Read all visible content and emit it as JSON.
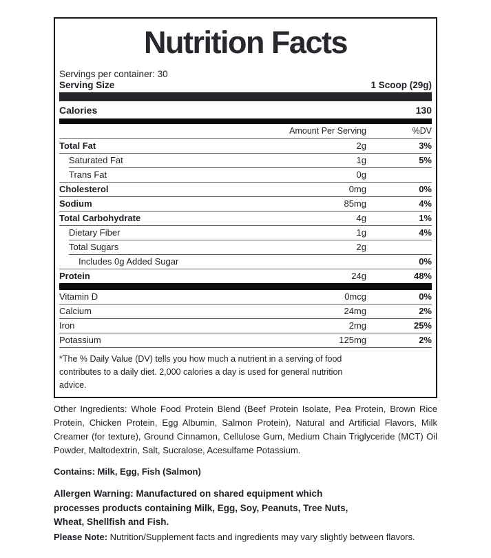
{
  "colors": {
    "text": "#1d1f24",
    "bar-dark": "#0c0c0d",
    "bar-charcoal": "#24262c",
    "hairline": "#595b60",
    "border": "#17181c",
    "bg": "#ffffff"
  },
  "label": {
    "title": "Nutrition Facts",
    "servings_per_container": "Servings per container: 30",
    "serving_size_label": "Serving Size",
    "serving_size_value": "1 Scoop (29g)",
    "calories_label": "Calories",
    "calories_value": "130",
    "col_amount_header": "Amount Per Serving",
    "col_dv_header": "%DV",
    "nutrients": [
      {
        "name": "Total Fat",
        "amount": "2g",
        "dv": "3%",
        "bold": true,
        "indent": 0
      },
      {
        "name": "Saturated Fat",
        "amount": "1g",
        "dv": "5%",
        "bold": false,
        "indent": 1
      },
      {
        "name": "Trans Fat",
        "amount": "0g",
        "dv": "",
        "bold": false,
        "indent": 1
      },
      {
        "name": "Cholesterol",
        "amount": "0mg",
        "dv": "0%",
        "bold": true,
        "indent": 0
      },
      {
        "name": "Sodium",
        "amount": "85mg",
        "dv": "4%",
        "bold": true,
        "indent": 0
      },
      {
        "name": "Total Carbohydrate",
        "amount": "4g",
        "dv": "1%",
        "bold": true,
        "indent": 0
      },
      {
        "name": "Dietary Fiber",
        "amount": "1g",
        "dv": "4%",
        "bold": false,
        "indent": 1
      },
      {
        "name": "Total Sugars",
        "amount": "2g",
        "dv": "",
        "bold": false,
        "indent": 1
      },
      {
        "name": "Includes 0g Added Sugar",
        "amount": "",
        "dv": "0%",
        "bold": false,
        "indent": 2
      },
      {
        "name": "Protein",
        "amount": "24g",
        "dv": "48%",
        "bold": true,
        "indent": 0
      }
    ],
    "vitamins": [
      {
        "name": "Vitamin D",
        "amount": "0mcg",
        "dv": "0%"
      },
      {
        "name": "Calcium",
        "amount": "24mg",
        "dv": "2%"
      },
      {
        "name": "Iron",
        "amount": "2mg",
        "dv": "25%"
      },
      {
        "name": "Potassium",
        "amount": "125mg",
        "dv": "2%"
      }
    ],
    "footnote": "*The % Daily Value (DV) tells you how much a nutrient in a serving of food contributes to a daily diet. 2,000 calories a day is used for general nutrition advice."
  },
  "below": {
    "other_ingredients_label": "Other Ingredients:",
    "other_ingredients_text": "Whole Food Protein Blend (Beef Protein Isolate, Pea Protein, Brown Rice Protein, Chicken Protein, Egg Albumin, Salmon Protein), Natural and Artificial Flavors, Milk Creamer (for texture), Ground Cinnamon, Cellulose Gum, Medium Chain Triglyceride (MCT) Oil Powder, Maltodextrin, Salt, Sucralose, Acesulfame Potassium.",
    "contains": "Contains: Milk, Egg, Fish (Salmon)",
    "allergen_label": "Allergen Warning:",
    "allergen_text": "Manufactured on shared equipment which processes products containing Milk, Egg, Soy, Peanuts, Tree Nuts, Wheat, Shellfish and Fish.",
    "please_note_label": "Please Note:",
    "please_note_text": "Nutrition/Supplement facts and ingredients may vary slightly between flavors."
  }
}
